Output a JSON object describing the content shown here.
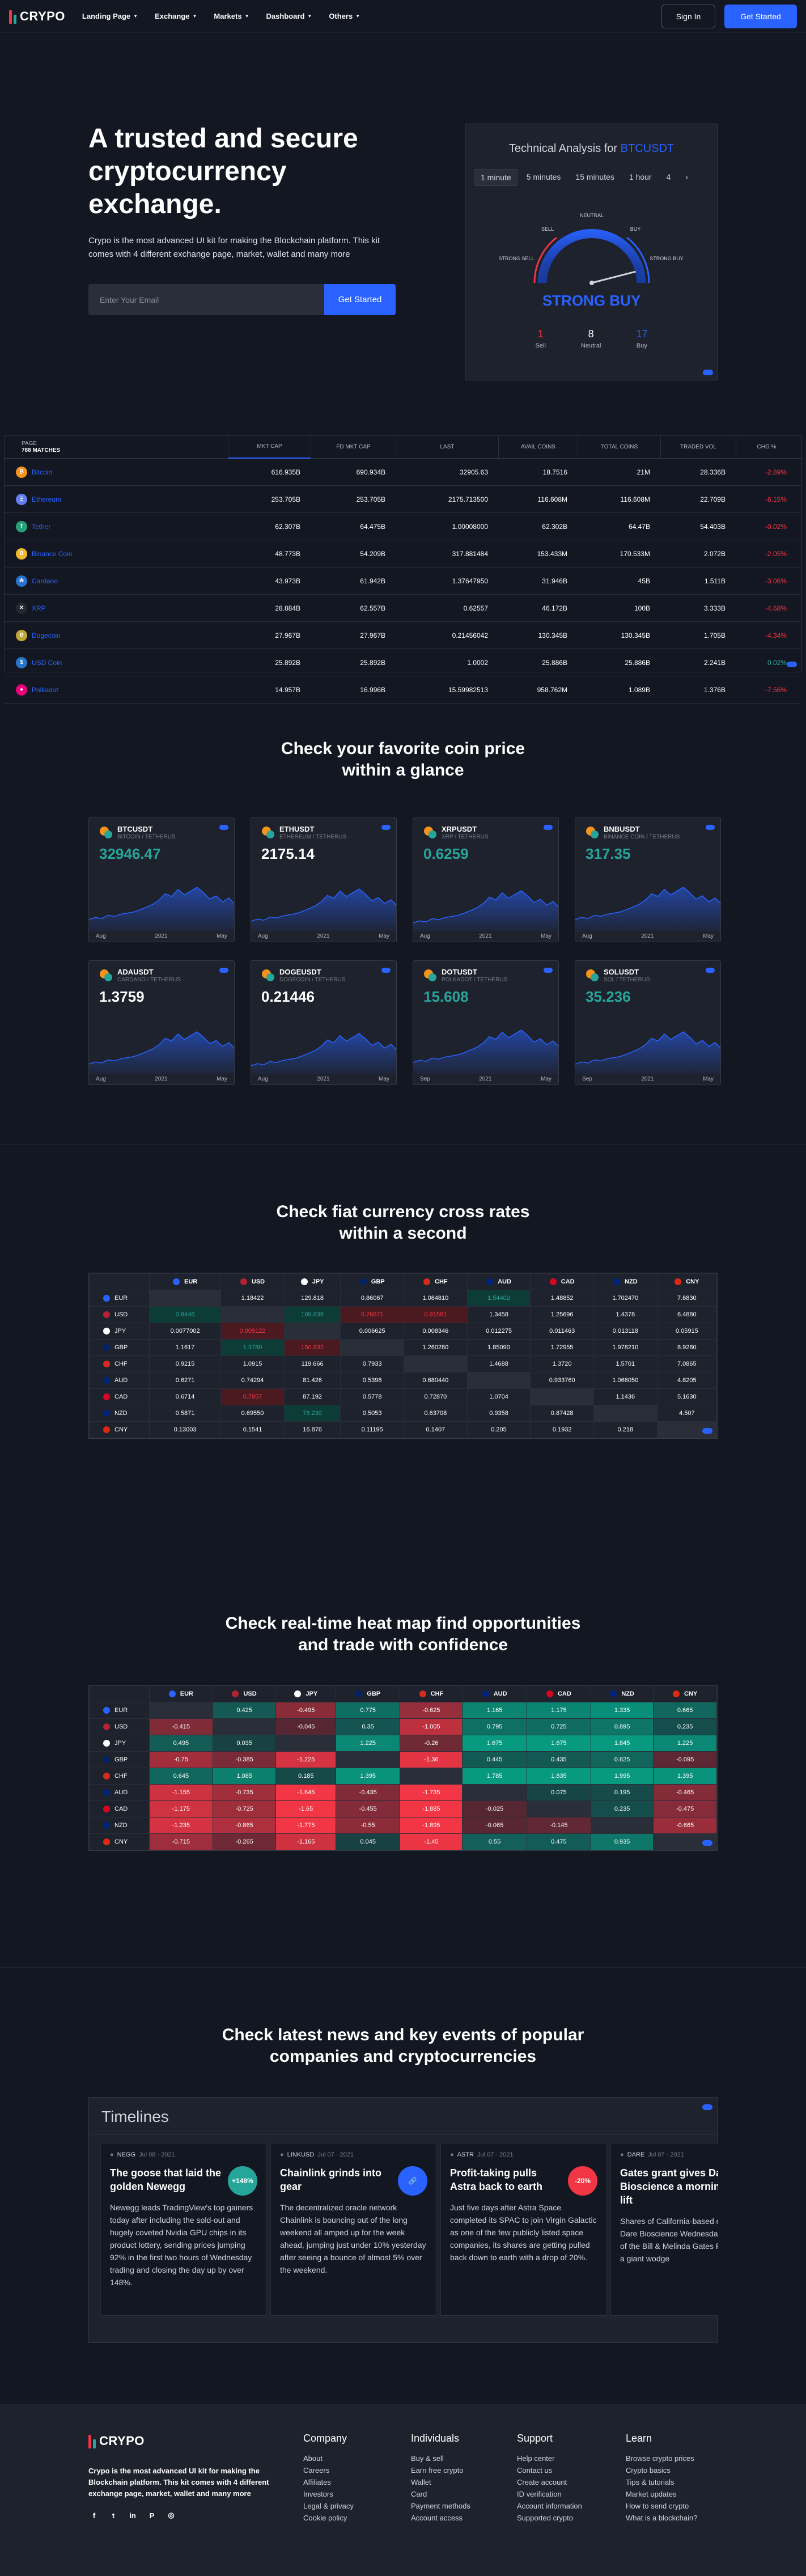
{
  "nav": {
    "brand": "CRYPO",
    "menu": [
      "Landing Page",
      "Exchange",
      "Markets",
      "Dashboard",
      "Others"
    ],
    "sign_in": "Sign In",
    "get_started": "Get Started"
  },
  "hero": {
    "title": "A trusted and secure cryptocurrency exchange.",
    "subtitle": "Crypo is the most advanced UI kit for making the Blockchain platform. This kit comes with 4 different exchange page, market, wallet and many more",
    "email_placeholder": "Enter Your Email",
    "cta": "Get Started"
  },
  "technical_analysis": {
    "title": "Technical Analysis for",
    "symbol": "BTCUSDT",
    "tabs": [
      "1 minute",
      "5 minutes",
      "15 minutes",
      "1 hour",
      "4"
    ],
    "gauge_labels": {
      "neutral": "NEUTRAL",
      "sell": "SELL",
      "buy": "BUY",
      "strong_sell": "STRONG SELL",
      "strong_buy": "STRONG BUY"
    },
    "result": "STRONG BUY",
    "tally": [
      {
        "count": "1",
        "label": "Sell",
        "color": "#f23645"
      },
      {
        "count": "8",
        "label": "Neutral",
        "color": "#ffffff"
      },
      {
        "count": "17",
        "label": "Buy",
        "color": "#2962ff"
      }
    ],
    "needle_value": 0.92
  },
  "market_table": {
    "header_left_small": "PAGE",
    "header_left": "788 MATCHES",
    "columns": [
      "MKT CAP",
      "FD MKT CAP",
      "LAST",
      "AVAIL COINS",
      "TOTAL COINS",
      "TRADED VOL",
      "CHG %"
    ],
    "rows": [
      {
        "name": "Bitcoin",
        "icon": "₿",
        "color": "#f7931a",
        "vals": [
          "616.935B",
          "690.934B",
          "32905.63",
          "18.7516",
          "21M",
          "28.336B",
          "-2.89%"
        ]
      },
      {
        "name": "Ethereum",
        "icon": "Ξ",
        "color": "#627eea",
        "vals": [
          "253.705B",
          "253.705B",
          "2175.713500",
          "116.608M",
          "116.608M",
          "22.709B",
          "-6.15%"
        ]
      },
      {
        "name": "Tether",
        "icon": "T",
        "color": "#26a17b",
        "vals": [
          "62.307B",
          "64.475B",
          "1.00008000",
          "62.302B",
          "64.47B",
          "54.403B",
          "-0.02%"
        ]
      },
      {
        "name": "Binance Coin",
        "icon": "B",
        "color": "#f3ba2f",
        "vals": [
          "48.773B",
          "54.209B",
          "317.881484",
          "153.433M",
          "170.533M",
          "2.072B",
          "-2.05%"
        ]
      },
      {
        "name": "Cardano",
        "icon": "₳",
        "color": "#2a71d0",
        "vals": [
          "43.973B",
          "61.942B",
          "1.37647950",
          "31.946B",
          "45B",
          "1.511B",
          "-3.06%"
        ]
      },
      {
        "name": "XRP",
        "icon": "✕",
        "color": "#23292f",
        "vals": [
          "28.884B",
          "62.557B",
          "0.62557",
          "46.172B",
          "100B",
          "3.333B",
          "-4.68%"
        ]
      },
      {
        "name": "Dogecoin",
        "icon": "Ð",
        "color": "#c2a633",
        "vals": [
          "27.967B",
          "27.967B",
          "0.21456042",
          "130.345B",
          "130.345B",
          "1.705B",
          "-4.34%"
        ]
      },
      {
        "name": "USD Coin",
        "icon": "$",
        "color": "#2775ca",
        "vals": [
          "25.892B",
          "25.892B",
          "1.0002",
          "25.886B",
          "25.886B",
          "2.241B",
          "0.02%"
        ]
      },
      {
        "name": "Polkadot",
        "icon": "●",
        "color": "#e6007a",
        "vals": [
          "14.957B",
          "16.996B",
          "15.59982513",
          "958.762M",
          "1.089B",
          "1.376B",
          "-7.56%"
        ]
      }
    ]
  },
  "coins_section": {
    "title": "Check your favorite coin price within a glance",
    "cards": [
      {
        "symbol": "BTCUSDT",
        "name": "BITCOIN / TETHERUS",
        "price": "32946.47",
        "price_color": "#26a69a",
        "ticks": [
          "Aug",
          "2021",
          "May"
        ],
        "icon": "BTC"
      },
      {
        "symbol": "ETHUSDT",
        "name": "ETHEREUM / TETHERUS",
        "price": "2175.14",
        "price_color": "#ffffff",
        "ticks": [
          "Aug",
          "2021",
          "May"
        ],
        "icon": "ETH"
      },
      {
        "symbol": "XRPUSDT",
        "name": "XRP / TETHERUS",
        "price": "0.6259",
        "price_color": "#26a69a",
        "ticks": [
          "Aug",
          "2021",
          "May"
        ],
        "icon": "XRP"
      },
      {
        "symbol": "BNBUSDT",
        "name": "BINANCE COIN / TETHERUS",
        "price": "317.35",
        "price_color": "#26a69a",
        "ticks": [
          "Aug",
          "2021",
          "May"
        ],
        "icon": "BNB"
      },
      {
        "symbol": "ADAUSDT",
        "name": "CARDANO / TETHERUS",
        "price": "1.3759",
        "price_color": "#ffffff",
        "ticks": [
          "Aug",
          "2021",
          "May"
        ],
        "icon": "ADA"
      },
      {
        "symbol": "DOGEUSDT",
        "name": "DOGECOIN / TETHERUS",
        "price": "0.21446",
        "price_color": "#ffffff",
        "ticks": [
          "Aug",
          "2021",
          "May"
        ],
        "icon": "DOGE"
      },
      {
        "symbol": "DOTUSDT",
        "name": "POLKADOT / TETHERUS",
        "price": "15.608",
        "price_color": "#26a69a",
        "ticks": [
          "Sep",
          "2021",
          "May"
        ],
        "icon": "DOT"
      },
      {
        "symbol": "SOLUSDT",
        "name": "SOL / TETHERUS",
        "price": "35.236",
        "price_color": "#26a69a",
        "ticks": [
          "Sep",
          "2021",
          "May"
        ],
        "icon": "SOL"
      }
    ]
  },
  "cross_rates": {
    "title": "Check fiat currency cross rates within a second",
    "currencies": [
      "EUR",
      "USD",
      "JPY",
      "GBP",
      "CHF",
      "AUD",
      "CAD",
      "NZD",
      "CNY"
    ],
    "flag_colors": [
      "#2962ff",
      "#b22234",
      "#ffffff",
      "#012169",
      "#d52b1e",
      "#00247d",
      "#d80621",
      "#00247d",
      "#de2910"
    ],
    "rows": [
      [
        "",
        "1.18422",
        "129.818",
        "0.86067",
        "1.084810",
        "1.54402",
        "1.48852",
        "1.702470",
        "7.6830"
      ],
      [
        "0.8446",
        "",
        "109.638",
        "0.76671",
        "0.91561",
        "1.3458",
        "1.25696",
        "1.4378",
        "6.4880"
      ],
      [
        "0.0077002",
        "0.009122",
        "",
        "0.006625",
        "0.008346",
        "0.012275",
        "0.011463",
        "0.013118",
        "0.05915"
      ],
      [
        "1.1617",
        "1.3780",
        "150.832",
        "",
        "1.260280",
        "1.85090",
        "1.72955",
        "1.978210",
        "8.9280"
      ],
      [
        "0.9215",
        "1.0915",
        "119.666",
        "0.7933",
        "",
        "1.4688",
        "1.3720",
        "1.5701",
        "7.0865"
      ],
      [
        "0.6271",
        "0.74294",
        "81.426",
        "0.5398",
        "0.680440",
        "",
        "0.933760",
        "1.068050",
        "4.8205"
      ],
      [
        "0.6714",
        "0.7957",
        "87.192",
        "0.5778",
        "0.72870",
        "1.0704",
        "",
        "1.1436",
        "5.1630"
      ],
      [
        "0.5871",
        "0.69550",
        "76.230",
        "0.5053",
        "0.63708",
        "0.9358",
        "0.87428",
        "",
        "4.507"
      ],
      [
        "0.13003",
        "0.1541",
        "16.876",
        "0.11195",
        "0.1407",
        "0.205",
        "0.1932",
        "0.218",
        ""
      ]
    ],
    "highlights": [
      [
        1,
        0,
        "pos"
      ],
      [
        1,
        2,
        "pos"
      ],
      [
        1,
        3,
        "neg"
      ],
      [
        1,
        4,
        "neg"
      ],
      [
        0,
        5,
        "pos"
      ],
      [
        2,
        1,
        "neg"
      ],
      [
        3,
        1,
        "pos"
      ],
      [
        3,
        2,
        "neg"
      ],
      [
        6,
        1,
        "neg"
      ],
      [
        7,
        2,
        "pos"
      ]
    ]
  },
  "heatmap": {
    "title": "Check real-time heat map find opportunities and trade with confidence",
    "currencies": [
      "EUR",
      "USD",
      "JPY",
      "GBP",
      "CHF",
      "AUD",
      "CAD",
      "NZD",
      "CNY"
    ],
    "rows": [
      [
        "",
        "0.425",
        "-0.495",
        "0.775",
        "-0.625",
        "1.165",
        "1.175",
        "1.335",
        "0.665"
      ],
      [
        "-0.415",
        "",
        "-0.045",
        "0.35",
        "-1.005",
        "0.795",
        "0.725",
        "0.895",
        "0.235"
      ],
      [
        "0.495",
        "0.035",
        "",
        "1.225",
        "-0.26",
        "1.675",
        "1.675",
        "1.845",
        "1.225"
      ],
      [
        "-0.75",
        "-0.385",
        "-1.225",
        "",
        "-1.36",
        "0.445",
        "0.435",
        "0.625",
        "-0.095"
      ],
      [
        "0.645",
        "1.085",
        "0.185",
        "1.395",
        "",
        "1.785",
        "1.835",
        "1.995",
        "1.395"
      ],
      [
        "-1.155",
        "-0.735",
        "-1.645",
        "-0.435",
        "-1.735",
        "",
        "0.075",
        "0.195",
        "-0.465"
      ],
      [
        "-1.175",
        "-0.725",
        "-1.65",
        "-0.455",
        "-1.885",
        "-0.025",
        "",
        "0.235",
        "-0.475"
      ],
      [
        "-1.235",
        "-0.865",
        "-1.775",
        "-0.55",
        "-1.895",
        "-0.065",
        "-0.145",
        "",
        "-0.665"
      ],
      [
        "-0.715",
        "-0.265",
        "-1.165",
        "0.045",
        "-1.45",
        "0.55",
        "0.475",
        "0.935",
        ""
      ]
    ]
  },
  "news": {
    "title": "Check latest news and key events of popular companies and cryptocurrencies",
    "timeline_label": "Timelines",
    "items": [
      {
        "ticker": "NEGG",
        "date": "Jul 08 · 2021",
        "title": "The goose that laid the golden Newegg",
        "body": "Newegg leads TradingView's top gainers today after including the sold-out and hugely coveted Nvidia GPU chips in its product lottery, sending prices jumping 92% in the first two hours of Wednesday trading and closing the day up by over 148%.",
        "badge": "+148%",
        "badge_color": "#26a69a"
      },
      {
        "ticker": "LINKUSD",
        "date": "Jul 07 · 2021",
        "title": "Chainlink grinds into gear",
        "body": "The decentralized oracle network Chainlink is bouncing out of the long weekend all amped up for the week ahead, jumping just under 10% yesterday after seeing a bounce of almost 5% over the weekend.",
        "badge": "link",
        "badge_color": "#2962ff"
      },
      {
        "ticker": "ASTR",
        "date": "Jul 07 · 2021",
        "title": "Profit-taking pulls Astra back to earth",
        "body": "Just five days after Astra Space completed its SPAC to join Virgin Galactic as one of the few publicly listed space companies, its shares are getting pulled back down to earth with a drop of 20%.",
        "badge": "-20%",
        "badge_color": "#f23645"
      },
      {
        "ticker": "DARE",
        "date": "Jul 07 · 2021",
        "title": "Gates grant gives Dare Bioscience a morning lift",
        "body": "Shares of California-based care company Dare Bioscience Wednesday with a leap of the Bill & Melinda Gates F hands over a giant wodge",
        "badge": "",
        "badge_color": ""
      }
    ]
  },
  "footer": {
    "brand": "CRYPO",
    "description": "Crypo is the most advanced UI kit for making the Blockchain platform. This kit comes with 4 different exchange page, market, wallet and many more",
    "columns": [
      {
        "title": "Company",
        "links": [
          "About",
          "Careers",
          "Affiliates",
          "Investors",
          "Legal & privacy",
          "Cookie policy"
        ]
      },
      {
        "title": "Individuals",
        "links": [
          "Buy & sell",
          "Earn free crypto",
          "Wallet",
          "Card",
          "Payment methods",
          "Account access"
        ]
      },
      {
        "title": "Support",
        "links": [
          "Help center",
          "Contact us",
          "Create account",
          "ID verification",
          "Account information",
          "Supported crypto"
        ]
      },
      {
        "title": "Learn",
        "links": [
          "Browse crypto prices",
          "Crypto basics",
          "Tips & tutorials",
          "Market updates",
          "How to send crypto",
          "What is a blockchain?"
        ]
      }
    ],
    "social": [
      "facebook-icon",
      "twitter-icon",
      "linkedin-icon",
      "pinterest-icon",
      "github-icon"
    ]
  }
}
